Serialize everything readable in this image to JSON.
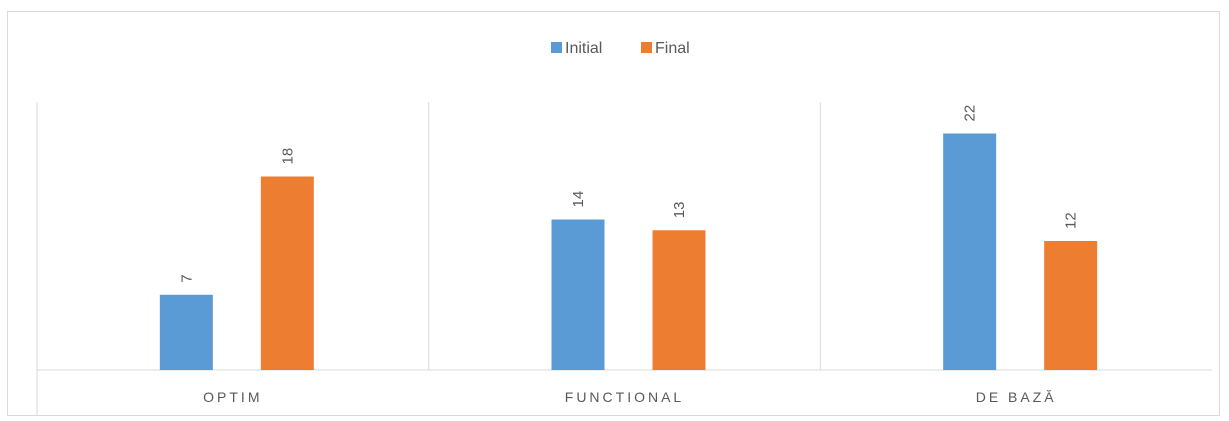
{
  "chart_data": {
    "type": "bar",
    "categories": [
      "OPTIM",
      "FUNCTIONAL",
      "DE BAZĂ"
    ],
    "series": [
      {
        "name": "Initial",
        "values": [
          7,
          14,
          22
        ],
        "color": "#5b9bd5"
      },
      {
        "name": "Final",
        "values": [
          18,
          13,
          12
        ],
        "color": "#ed7d31"
      }
    ],
    "ylim": [
      0,
      25
    ],
    "legend_position": "top-center",
    "grid": false,
    "data_labels": true
  }
}
